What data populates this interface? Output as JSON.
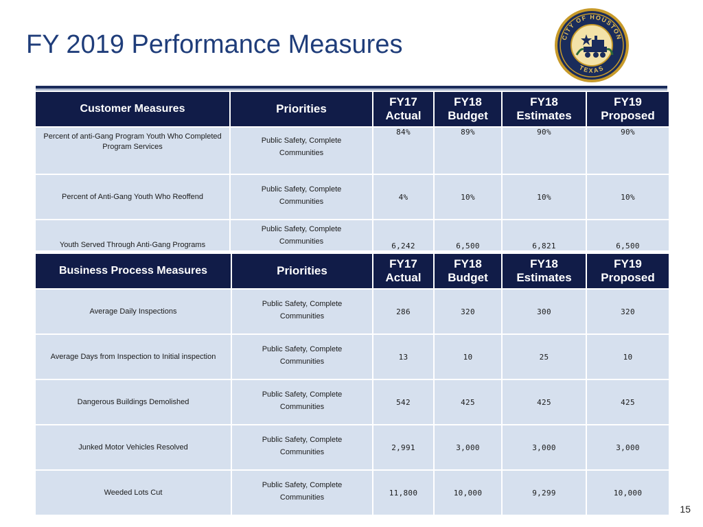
{
  "title": "FY 2019 Performance Measures",
  "seal": {
    "text": "CITY OF HOUSTON TEXAS"
  },
  "colors": {
    "title": "#1f3d7a",
    "header_bg": "#111c48",
    "row_bg": "#d6e0ee",
    "seal_gold": "#c79a2a",
    "seal_navy": "#1a2c5b"
  },
  "customer": {
    "headers": [
      "Customer Measures",
      "Priorities",
      "FY17\nActual",
      "FY18\nBudget",
      "FY18\nEstimates",
      "FY19\nProposed"
    ],
    "rows": [
      {
        "measure": "Percent of anti-Gang Program Youth Who Completed Program Services",
        "priority_line1": "Public Safety, Complete",
        "priority_line2": "Communities",
        "fy17": "84%",
        "fy18_budget": "89%",
        "fy18_est": "90%",
        "fy19": "90%"
      },
      {
        "measure": "Percent of Anti-Gang Youth Who Reoffend",
        "priority_line1": "Public Safety, Complete",
        "priority_line2": "Communities",
        "fy17": "4%",
        "fy18_budget": "10%",
        "fy18_est": "10%",
        "fy19": "10%"
      },
      {
        "measure": "Youth Served Through Anti-Gang Programs",
        "priority_line1": "Public Safety, Complete",
        "priority_line2": "Communities",
        "fy17": "6,242",
        "fy18_budget": "6,500",
        "fy18_est": "6,821",
        "fy19": "6,500"
      }
    ]
  },
  "business": {
    "headers": [
      "Business Process Measures",
      "Priorities",
      "FY17\nActual",
      "FY18\nBudget",
      "FY18\nEstimates",
      "FY19\nProposed"
    ],
    "rows": [
      {
        "measure": "Average Daily Inspections",
        "priority_line1": "Public Safety, Complete",
        "priority_line2": "Communities",
        "fy17": "286",
        "fy18_budget": "320",
        "fy18_est": "300",
        "fy19": "320"
      },
      {
        "measure": "Average Days from Inspection to Initial inspection",
        "priority_line1": "Public Safety, Complete",
        "priority_line2": "Communities",
        "fy17": "13",
        "fy18_budget": "10",
        "fy18_est": "25",
        "fy19": "10"
      },
      {
        "measure": "Dangerous Buildings Demolished",
        "priority_line1": "Public Safety, Complete",
        "priority_line2": "Communities",
        "fy17": "542",
        "fy18_budget": "425",
        "fy18_est": "425",
        "fy19": "425"
      },
      {
        "measure": "Junked Motor Vehicles Resolved",
        "priority_line1": "Public Safety, Complete",
        "priority_line2": "Communities",
        "fy17": "2,991",
        "fy18_budget": "3,000",
        "fy18_est": "3,000",
        "fy19": "3,000"
      },
      {
        "measure": "Weeded Lots Cut",
        "priority_line1": "Public Safety, Complete",
        "priority_line2": "Communities",
        "fy17": "11,800",
        "fy18_budget": "10,000",
        "fy18_est": "9,299",
        "fy19": "10,000"
      }
    ]
  },
  "page_number": "15"
}
